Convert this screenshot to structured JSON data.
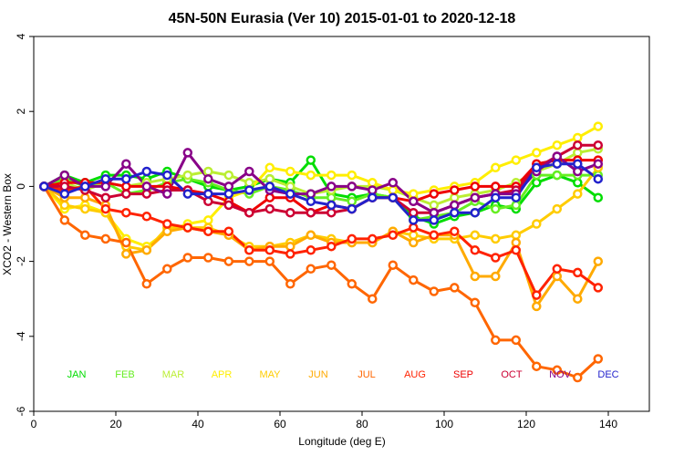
{
  "chart_data": {
    "type": "line",
    "title": "45N-50N Eurasia (Ver 10)   2015-01-01 to 2020-12-18",
    "xlabel": "Longitude (deg E)",
    "ylabel": "XCO2 - Western Box",
    "xlim": [
      0,
      150
    ],
    "ylim": [
      -6,
      4
    ],
    "xticks": [
      0,
      20,
      40,
      60,
      80,
      100,
      120,
      140
    ],
    "yticks": [
      -6,
      -4,
      -2,
      0,
      2,
      4
    ],
    "grid": false,
    "x": [
      2.5,
      7.5,
      12.5,
      17.5,
      22.5,
      27.5,
      32.5,
      37.5,
      42.5,
      47.5,
      52.5,
      57.5,
      62.5,
      67.5,
      72.5,
      77.5,
      82.5,
      87.5,
      92.5,
      97.5,
      102.5,
      107.5,
      112.5,
      117.5,
      122.5,
      127.5,
      132.5,
      137.5
    ],
    "series": [
      {
        "name": "JAN",
        "color": "#00dd00",
        "values": [
          0,
          0.3,
          0.1,
          0.3,
          0.3,
          0.2,
          0.4,
          0.2,
          0.0,
          -0.1,
          0.0,
          0.2,
          0.1,
          0.7,
          -0.2,
          -0.3,
          -0.2,
          -0.3,
          -0.8,
          -1.0,
          -0.8,
          -0.7,
          -0.5,
          -0.6,
          0.1,
          0.3,
          0.1,
          -0.3
        ]
      },
      {
        "name": "FEB",
        "color": "#66ee22",
        "values": [
          0,
          0.2,
          0.0,
          0.1,
          -0.2,
          -0.1,
          0.1,
          0.2,
          0.1,
          -0.1,
          -0.2,
          0.0,
          -0.1,
          -0.3,
          -0.3,
          -0.4,
          -0.2,
          -0.3,
          -0.9,
          -0.8,
          -0.7,
          -0.4,
          -0.6,
          -0.5,
          0.3,
          0.3,
          0.3,
          0.3
        ]
      },
      {
        "name": "MAR",
        "color": "#bbee33",
        "values": [
          0,
          0.1,
          -0.1,
          0.1,
          0.0,
          0.1,
          0.2,
          0.3,
          0.4,
          0.3,
          0.1,
          0.2,
          0.0,
          -0.2,
          -0.1,
          0.0,
          0.0,
          -0.1,
          -0.3,
          -0.5,
          -0.3,
          -0.2,
          -0.1,
          0.1,
          0.4,
          0.6,
          0.9,
          1.0
        ]
      },
      {
        "name": "APR",
        "color": "#ffee00",
        "values": [
          0,
          -0.6,
          -0.5,
          -0.7,
          -1.4,
          -1.6,
          -1.2,
          -1.0,
          -0.9,
          -0.3,
          -0.1,
          0.5,
          0.4,
          0.3,
          0.3,
          0.3,
          0.1,
          -0.1,
          -0.2,
          -0.1,
          0.0,
          0.1,
          0.5,
          0.7,
          0.9,
          1.1,
          1.3,
          1.6
        ]
      },
      {
        "name": "MAY",
        "color": "#ffcc00",
        "values": [
          0,
          -0.5,
          -0.6,
          -0.7,
          -1.6,
          -1.7,
          -1.1,
          -1.1,
          -1.1,
          -1.3,
          -1.6,
          -1.6,
          -1.5,
          -1.3,
          -1.4,
          -1.5,
          -1.5,
          -1.2,
          -1.3,
          -1.4,
          -1.4,
          -1.3,
          -1.4,
          -1.3,
          -1.0,
          -0.6,
          -0.2,
          0.5
        ]
      },
      {
        "name": "JUN",
        "color": "#ffaa00",
        "values": [
          0,
          -0.3,
          -0.3,
          -0.5,
          -1.8,
          -1.7,
          -1.2,
          -1.1,
          -1.2,
          -1.3,
          -1.7,
          -1.6,
          -1.6,
          -1.3,
          -1.5,
          -1.5,
          -1.5,
          -1.2,
          -1.5,
          -1.3,
          -1.3,
          -2.4,
          -2.4,
          -1.5,
          -3.2,
          -2.4,
          -3.0,
          -2.0
        ]
      },
      {
        "name": "JUL",
        "color": "#ff6600",
        "values": [
          0,
          -0.9,
          -1.3,
          -1.4,
          -1.5,
          -2.6,
          -2.2,
          -1.9,
          -1.9,
          -2.0,
          -2.0,
          -2.0,
          -2.6,
          -2.2,
          -2.1,
          -2.6,
          -3.0,
          -2.1,
          -2.5,
          -2.8,
          -2.7,
          -3.1,
          -4.1,
          -4.1,
          -4.8,
          -4.9,
          -5.1,
          -4.6
        ]
      },
      {
        "name": "AUG",
        "color": "#ff2200",
        "values": [
          0,
          -0.1,
          0.0,
          -0.6,
          -0.7,
          -0.8,
          -1.0,
          -1.1,
          -1.2,
          -1.2,
          -1.7,
          -1.7,
          -1.8,
          -1.7,
          -1.6,
          -1.4,
          -1.4,
          -1.3,
          -1.1,
          -1.3,
          -1.2,
          -1.7,
          -1.9,
          -1.7,
          -2.9,
          -2.2,
          -2.3,
          -2.7
        ]
      },
      {
        "name": "SEP",
        "color": "#ee0000",
        "values": [
          0,
          0.1,
          0.1,
          0.1,
          0.0,
          0.0,
          0.0,
          -0.1,
          -0.2,
          -0.4,
          -0.7,
          -0.3,
          -0.3,
          -0.7,
          -0.5,
          -0.6,
          -0.3,
          -0.3,
          -0.4,
          -0.2,
          -0.1,
          0.0,
          0.0,
          0.0,
          0.6,
          0.7,
          0.7,
          0.7
        ]
      },
      {
        "name": "OCT",
        "color": "#cc0033",
        "values": [
          0,
          0.0,
          -0.1,
          -0.3,
          -0.2,
          -0.2,
          -0.1,
          -0.1,
          -0.4,
          -0.5,
          -0.7,
          -0.6,
          -0.7,
          -0.7,
          -0.7,
          -0.6,
          -0.3,
          -0.3,
          -0.7,
          -0.7,
          -0.5,
          -0.3,
          -0.2,
          -0.1,
          0.5,
          0.8,
          1.1,
          1.1
        ]
      },
      {
        "name": "NOV",
        "color": "#880088",
        "values": [
          0,
          0.3,
          0.0,
          0.0,
          0.6,
          0.0,
          -0.2,
          0.9,
          0.2,
          0.0,
          0.4,
          -0.1,
          -0.2,
          -0.2,
          0.0,
          0.0,
          -0.1,
          0.1,
          -0.4,
          -0.7,
          -0.5,
          -0.3,
          -0.2,
          -0.2,
          0.4,
          0.8,
          0.4,
          0.6
        ]
      },
      {
        "name": "DEC",
        "color": "#2222cc",
        "values": [
          0,
          -0.2,
          0.0,
          0.2,
          0.2,
          0.4,
          0.3,
          -0.2,
          -0.2,
          -0.2,
          -0.1,
          0.0,
          -0.2,
          -0.4,
          -0.5,
          -0.6,
          -0.3,
          -0.3,
          -0.9,
          -0.9,
          -0.7,
          -0.7,
          -0.3,
          -0.3,
          0.5,
          0.6,
          0.6,
          0.2
        ]
      }
    ],
    "legend": {
      "placement": "bottom",
      "y_value": -5
    }
  }
}
